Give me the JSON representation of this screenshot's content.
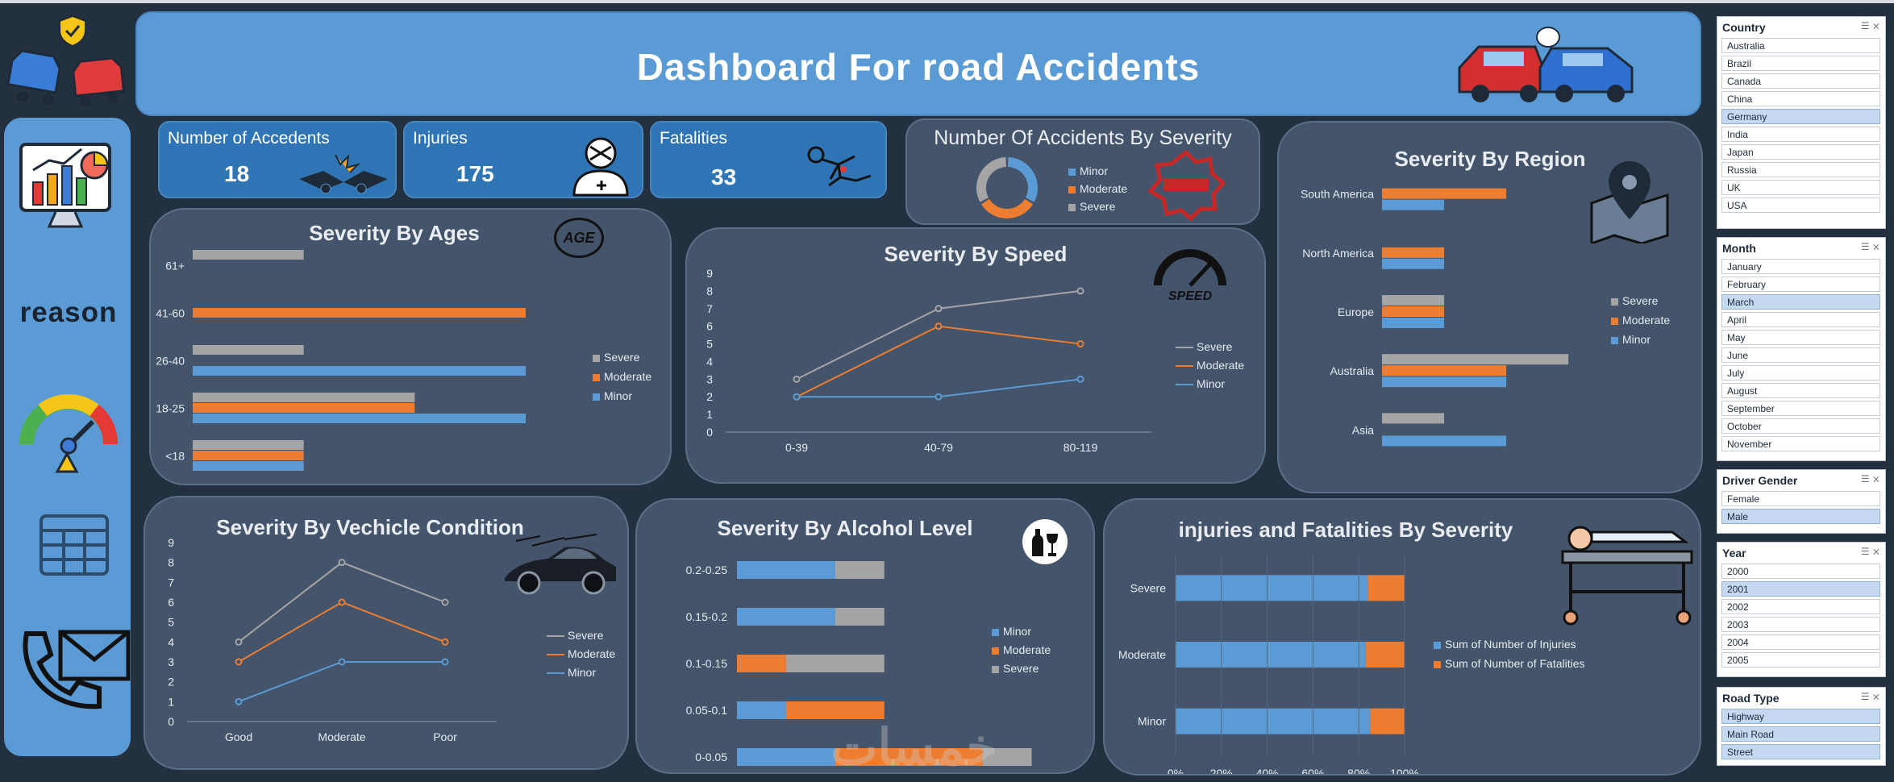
{
  "header": {
    "title": "Dashboard For road Accidents"
  },
  "sidebar": {
    "reason_label": "reason"
  },
  "kpis": [
    {
      "label": "Number of Accedents",
      "value": "18"
    },
    {
      "label": "Injuries",
      "value": "175"
    },
    {
      "label": "Fatalities",
      "value": "33"
    }
  ],
  "colors": {
    "severe": "#a5a5a5",
    "moderate": "#ed7d31",
    "minor": "#5b9bd5"
  },
  "chart_data": [
    {
      "id": "donut",
      "type": "pie",
      "title": "Number Of Accidents By  Severity",
      "legend": [
        "Minor",
        "Moderate",
        "Severe"
      ],
      "values": [
        6,
        6,
        6
      ]
    },
    {
      "id": "ages",
      "type": "bar",
      "title": "Severity By Ages",
      "categories": [
        "<18",
        "18-25",
        "26-40",
        "41-60",
        "61+"
      ],
      "series": [
        {
          "name": "Minor",
          "values": [
            1,
            3,
            3,
            0,
            0
          ]
        },
        {
          "name": "Moderate",
          "values": [
            1,
            2,
            0,
            3,
            0
          ]
        },
        {
          "name": "Severe",
          "values": [
            1,
            2,
            1,
            0,
            1
          ]
        }
      ],
      "legend": [
        "Severe",
        "Moderate",
        "Minor"
      ],
      "xlim": [
        0,
        3
      ]
    },
    {
      "id": "speed",
      "type": "line",
      "title": "Severity By Speed",
      "categories": [
        "0-39",
        "40-79",
        "80-119"
      ],
      "yticks": [
        "0",
        "1",
        "2",
        "3",
        "4",
        "5",
        "6",
        "7",
        "8",
        "9"
      ],
      "ylim": [
        0,
        9
      ],
      "series": [
        {
          "name": "Severe",
          "values": [
            3,
            7,
            8
          ]
        },
        {
          "name": "Moderate",
          "values": [
            2,
            6,
            5
          ]
        },
        {
          "name": "Minor",
          "values": [
            2,
            2,
            3
          ]
        }
      ],
      "legend": [
        "Severe",
        "Moderate",
        "Minor"
      ]
    },
    {
      "id": "region",
      "type": "bar",
      "title": "Severity By Region",
      "categories": [
        "Asia",
        "Australia",
        "Europe",
        "North America",
        "South America"
      ],
      "series": [
        {
          "name": "Minor",
          "values": [
            2,
            2,
            1,
            1,
            1
          ]
        },
        {
          "name": "Moderate",
          "values": [
            0,
            2,
            1,
            1,
            2
          ]
        },
        {
          "name": "Severe",
          "values": [
            1,
            3,
            1,
            0,
            0
          ]
        }
      ],
      "legend": [
        "Severe",
        "Moderate",
        "Minor"
      ],
      "xlim": [
        0,
        3.4
      ]
    },
    {
      "id": "vehicle",
      "type": "line",
      "title": "Severity By  Vechicle Condition",
      "categories": [
        "Good",
        "Moderate",
        "Poor"
      ],
      "yticks": [
        "0",
        "1",
        "2",
        "3",
        "4",
        "5",
        "6",
        "7",
        "8",
        "9"
      ],
      "ylim": [
        0,
        9
      ],
      "series": [
        {
          "name": "Severe",
          "values": [
            4,
            8,
            6
          ]
        },
        {
          "name": "Moderate",
          "values": [
            3,
            6,
            4
          ]
        },
        {
          "name": "Minor",
          "values": [
            1,
            3,
            3
          ]
        }
      ],
      "legend": [
        "Severe",
        "Moderate",
        "Minor"
      ]
    },
    {
      "id": "alcohol",
      "type": "bar",
      "title": "Severity By Alcohol Level",
      "categories": [
        "0-0.05",
        "0.05-0.1",
        "0.1-0.15",
        "0.15-0.2",
        "0.2-0.25"
      ],
      "series": [
        {
          "name": "Minor",
          "values": [
            2,
            1,
            0,
            2,
            2
          ]
        },
        {
          "name": "Moderate",
          "values": [
            3,
            2,
            1,
            0,
            0
          ]
        },
        {
          "name": "Severe",
          "values": [
            1,
            0,
            2,
            1,
            1
          ]
        }
      ],
      "legend": [
        "Minor",
        "Moderate",
        "Severe"
      ],
      "xlim": [
        0,
        6.5
      ]
    },
    {
      "id": "injfat",
      "type": "bar",
      "title": "injuries and Fatalities By Severity",
      "categories": [
        "Minor",
        "Moderate",
        "Severe"
      ],
      "series": [
        {
          "name": "Sum of Number of Injuries",
          "values": [
            85,
            83,
            84
          ]
        },
        {
          "name": "Sum of Number of Fatalities",
          "values": [
            15,
            17,
            16
          ]
        }
      ],
      "xticks": [
        "0%",
        "20%",
        "40%",
        "60%",
        "80%",
        "100%"
      ],
      "legend": [
        "Sum of Number of Injuries",
        "Sum of Number of Fatalities"
      ],
      "xlim": [
        0,
        100
      ]
    }
  ],
  "slicers": {
    "country": {
      "title": "Country",
      "items": [
        "Australia",
        "Brazil",
        "Canada",
        "China",
        "Germany",
        "India",
        "Japan",
        "Russia",
        "UK",
        "USA"
      ],
      "selected": "Germany"
    },
    "month": {
      "title": "Month",
      "items": [
        "January",
        "February",
        "March",
        "April",
        "May",
        "June",
        "July",
        "August",
        "September",
        "October",
        "November"
      ],
      "selected": "March"
    },
    "gender": {
      "title": "Driver Gender",
      "items": [
        "Female",
        "Male"
      ],
      "selected": "Male"
    },
    "year": {
      "title": "Year",
      "items": [
        "2000",
        "2001",
        "2002",
        "2003",
        "2004",
        "2005"
      ],
      "selected": "2001"
    },
    "road": {
      "title": "Road Type",
      "items": [
        "Highway",
        "Main Road",
        "Street"
      ],
      "selected": "all"
    }
  }
}
